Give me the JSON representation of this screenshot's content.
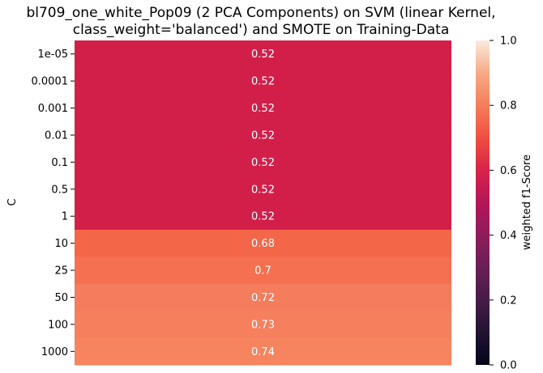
{
  "chart_data": {
    "type": "heatmap",
    "title_line1": "bl709_one_white_Pop09 (2 PCA Components) on SVM (linear Kernel,",
    "title_line2": "class_weight='balanced') and SMOTE on Training-Data",
    "ylabel": "C",
    "xlabel": "",
    "rows": [
      "1e-05",
      "0.0001",
      "0.001",
      "0.01",
      "0.1",
      "0.5",
      "1",
      "10",
      "25",
      "50",
      "100",
      "1000"
    ],
    "values": [
      0.52,
      0.52,
      0.52,
      0.52,
      0.52,
      0.52,
      0.52,
      0.68,
      0.7,
      0.72,
      0.73,
      0.74
    ],
    "value_labels": [
      "0.52",
      "0.52",
      "0.52",
      "0.52",
      "0.52",
      "0.52",
      "0.52",
      "0.68",
      "0.7",
      "0.72",
      "0.73",
      "0.74"
    ],
    "colorbar": {
      "label": "weighted f1-Score",
      "vmin": 0.0,
      "vmax": 1.0,
      "ticks": [
        "0.0",
        "0.2",
        "0.4",
        "0.6",
        "0.8",
        "1.0"
      ],
      "colormap": "rocket"
    },
    "cell_colors": [
      "#d21f4a",
      "#d21f4a",
      "#d21f4a",
      "#d21f4a",
      "#d21f4a",
      "#d21f4a",
      "#d21f4a",
      "#f36648",
      "#f57050",
      "#f57c5c",
      "#f6805d",
      "#f6845f"
    ],
    "cell_text_color": "#ffffff",
    "grid": false
  }
}
